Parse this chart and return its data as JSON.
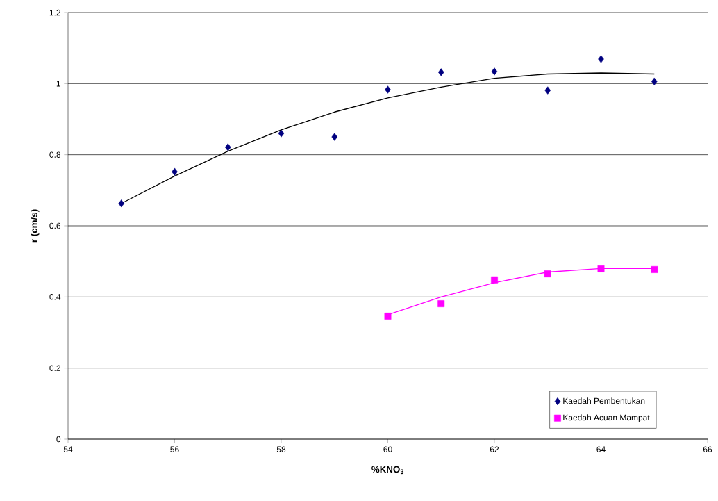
{
  "chart_data": {
    "type": "scatter",
    "xlabel": "%KNO$_{3}$",
    "ylabel": "r (cm/s)",
    "xlim": [
      54,
      66
    ],
    "xticks": [
      54,
      56,
      58,
      60,
      62,
      64,
      66
    ],
    "ylim": [
      0,
      1.2
    ],
    "yticks": [
      0,
      0.2,
      0.4,
      0.6,
      0.8,
      1,
      1.2
    ],
    "grid": "y",
    "legend": "bottom right",
    "series": [
      {
        "name": "Kaedah Pembentukan",
        "color": "#000080",
        "marker": "diamond",
        "x": [
          55,
          56,
          57,
          58,
          59,
          60,
          61,
          62,
          63,
          64,
          65
        ],
        "values": [
          0.663,
          0.752,
          0.821,
          0.86,
          0.85,
          0.983,
          1.032,
          1.034,
          0.981,
          1.069,
          1.006
        ]
      },
      {
        "name": "Kaedah Acuan Mampat",
        "color": "#ff00ff",
        "marker": "square",
        "x": [
          60,
          61,
          62,
          63,
          64,
          65
        ],
        "values": [
          0.346,
          0.381,
          0.448,
          0.465,
          0.479,
          0.477
        ]
      },
      {
        "type": "line",
        "color": "#000000",
        "marker": "none",
        "x": [
          55,
          56,
          57,
          58,
          59,
          60,
          61,
          62,
          63,
          64,
          65
        ],
        "values": [
          0.663,
          0.74,
          0.81,
          0.87,
          0.92,
          0.96,
          0.99,
          1.015,
          1.027,
          1.03,
          1.027
        ]
      },
      {
        "type": "line",
        "color": "#ff00ff",
        "marker": "none",
        "x": [
          60,
          61,
          62,
          63,
          64,
          65
        ],
        "values": [
          0.35,
          0.4,
          0.44,
          0.47,
          0.48,
          0.48
        ]
      }
    ]
  }
}
